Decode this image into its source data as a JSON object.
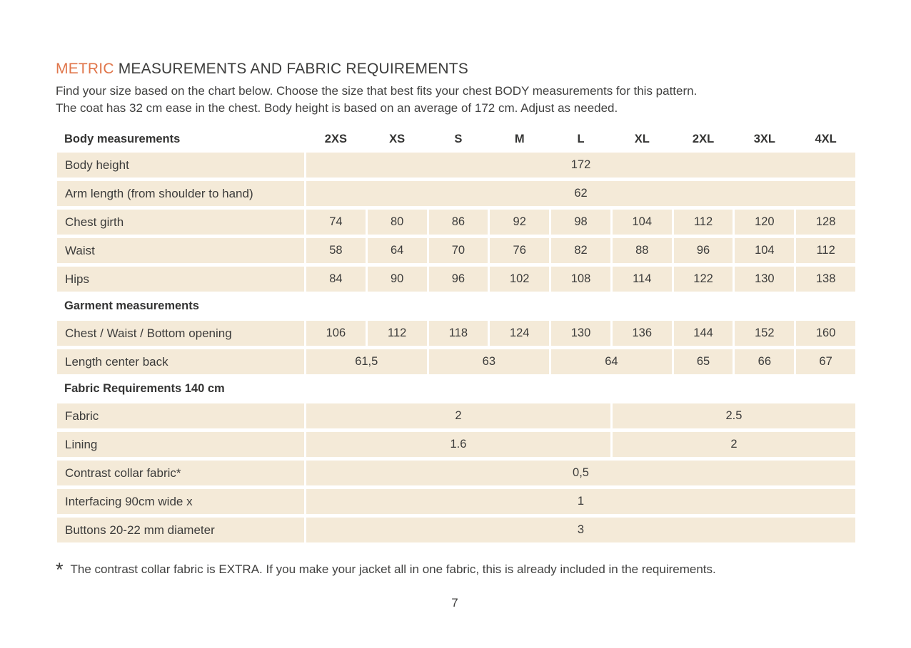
{
  "page": {
    "title": {
      "highlight": "METRIC",
      "rest": " MEASUREMENTS AND FABRIC REQUIREMENTS"
    },
    "intro": [
      "Find your size based on the chart below. Choose the size that best fits your chest BODY measurements for this pattern.",
      "The coat has 32 cm ease in the chest. Body height is based on an average of 172 cm. Adjust as needed."
    ],
    "footnote": {
      "marker": "*",
      "text": "The contrast collar fabric is EXTRA. If you make your jacket all in one fabric, this is already included in the requirements."
    },
    "page_number": "7"
  },
  "colors": {
    "accent_orange": "#e0764b",
    "cell_beige": "#f4ead8",
    "text_dark": "#3c3c3b"
  },
  "table": {
    "head": {
      "label": "Body measurements",
      "sizes": [
        "2XS",
        "XS",
        "S",
        "M",
        "L",
        "XL",
        "2XL",
        "3XL",
        "4XL"
      ]
    },
    "groups": [
      {
        "section": "",
        "rows": [
          {
            "label": "Body height",
            "cells": [
              {
                "span": 9,
                "v": "172"
              }
            ]
          },
          {
            "label": "Arm length (from shoulder to hand)",
            "cells": [
              {
                "span": 9,
                "v": "62"
              }
            ]
          },
          {
            "label": "Chest girth",
            "cells": [
              {
                "span": 1,
                "v": "74"
              },
              {
                "span": 1,
                "v": "80"
              },
              {
                "span": 1,
                "v": "86"
              },
              {
                "span": 1,
                "v": "92"
              },
              {
                "span": 1,
                "v": "98"
              },
              {
                "span": 1,
                "v": "104"
              },
              {
                "span": 1,
                "v": "112"
              },
              {
                "span": 1,
                "v": "120"
              },
              {
                "span": 1,
                "v": "128"
              }
            ]
          },
          {
            "label": "Waist",
            "cells": [
              {
                "span": 1,
                "v": "58"
              },
              {
                "span": 1,
                "v": "64"
              },
              {
                "span": 1,
                "v": "70"
              },
              {
                "span": 1,
                "v": "76"
              },
              {
                "span": 1,
                "v": "82"
              },
              {
                "span": 1,
                "v": "88"
              },
              {
                "span": 1,
                "v": "96"
              },
              {
                "span": 1,
                "v": "104"
              },
              {
                "span": 1,
                "v": "112"
              }
            ]
          },
          {
            "label": "Hips",
            "cells": [
              {
                "span": 1,
                "v": "84"
              },
              {
                "span": 1,
                "v": "90"
              },
              {
                "span": 1,
                "v": "96"
              },
              {
                "span": 1,
                "v": "102"
              },
              {
                "span": 1,
                "v": "108"
              },
              {
                "span": 1,
                "v": "114"
              },
              {
                "span": 1,
                "v": "122"
              },
              {
                "span": 1,
                "v": "130"
              },
              {
                "span": 1,
                "v": "138"
              }
            ]
          }
        ]
      },
      {
        "section": "Garment measurements",
        "rows": [
          {
            "label": "Chest / Waist / Bottom opening",
            "cells": [
              {
                "span": 1,
                "v": "106"
              },
              {
                "span": 1,
                "v": "112"
              },
              {
                "span": 1,
                "v": "118"
              },
              {
                "span": 1,
                "v": "124"
              },
              {
                "span": 1,
                "v": "130"
              },
              {
                "span": 1,
                "v": "136"
              },
              {
                "span": 1,
                "v": "144"
              },
              {
                "span": 1,
                "v": "152"
              },
              {
                "span": 1,
                "v": "160"
              }
            ]
          },
          {
            "label": "Length center back",
            "cells": [
              {
                "span": 2,
                "v": "61,5"
              },
              {
                "span": 2,
                "v": "63"
              },
              {
                "span": 2,
                "v": "64"
              },
              {
                "span": 1,
                "v": "65"
              },
              {
                "span": 1,
                "v": "66"
              },
              {
                "span": 1,
                "v": "67"
              }
            ]
          }
        ]
      },
      {
        "section": "Fabric Requirements 140 cm",
        "rows": [
          {
            "label": "Fabric",
            "cells": [
              {
                "span": 5,
                "v": "2"
              },
              {
                "span": 4,
                "v": "2.5"
              }
            ]
          },
          {
            "label": "Lining",
            "cells": [
              {
                "span": 5,
                "v": "1.6"
              },
              {
                "span": 4,
                "v": "2"
              }
            ]
          },
          {
            "label": "Contrast collar fabric*",
            "cells": [
              {
                "span": 9,
                "v": "0,5"
              }
            ]
          },
          {
            "label": "Interfacing  90cm wide x",
            "cells": [
              {
                "span": 9,
                "v": "1"
              }
            ]
          },
          {
            "label": "Buttons 20-22 mm diameter",
            "cells": [
              {
                "span": 9,
                "v": "3"
              }
            ]
          }
        ]
      }
    ]
  }
}
